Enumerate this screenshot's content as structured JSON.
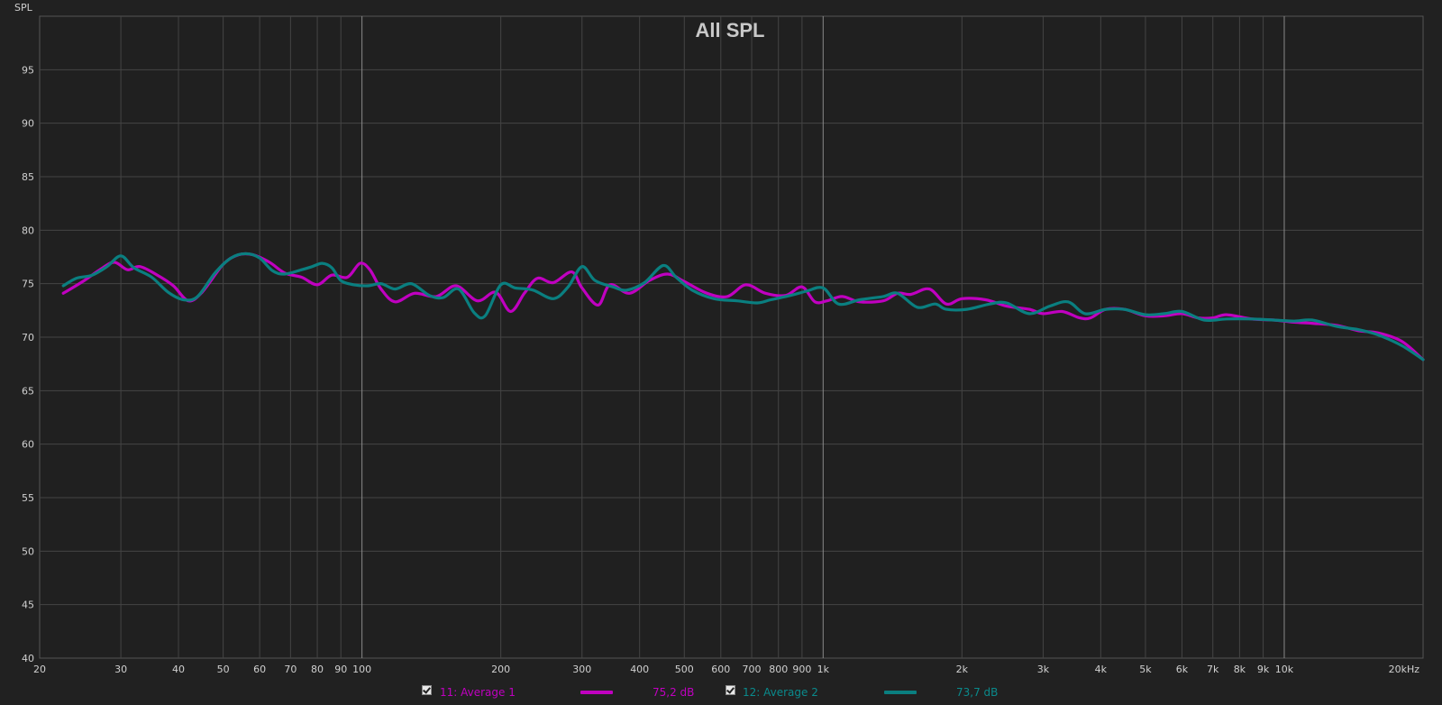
{
  "chart_data": {
    "type": "line",
    "title": "All SPL",
    "ylabel": "SPL",
    "xlabel": "",
    "x_scale": "log",
    "xlim": [
      20,
      20000
    ],
    "ylim": [
      40,
      100
    ],
    "y_ticks": [
      40,
      45,
      50,
      55,
      60,
      65,
      70,
      75,
      80,
      85,
      90,
      95
    ],
    "x_ticks": [
      {
        "v": 20,
        "label": "20"
      },
      {
        "v": 30,
        "label": "30"
      },
      {
        "v": 40,
        "label": "40"
      },
      {
        "v": 50,
        "label": "50"
      },
      {
        "v": 60,
        "label": "60"
      },
      {
        "v": 70,
        "label": "70"
      },
      {
        "v": 80,
        "label": "80"
      },
      {
        "v": 90,
        "label": "90"
      },
      {
        "v": 100,
        "label": "100"
      },
      {
        "v": 200,
        "label": "200"
      },
      {
        "v": 300,
        "label": "300"
      },
      {
        "v": 400,
        "label": "400"
      },
      {
        "v": 500,
        "label": "500"
      },
      {
        "v": 600,
        "label": "600"
      },
      {
        "v": 700,
        "label": "700"
      },
      {
        "v": 800,
        "label": "800"
      },
      {
        "v": 900,
        "label": "900"
      },
      {
        "v": 1000,
        "label": "1k"
      },
      {
        "v": 2000,
        "label": "2k"
      },
      {
        "v": 3000,
        "label": "3k"
      },
      {
        "v": 4000,
        "label": "4k"
      },
      {
        "v": 5000,
        "label": "5k"
      },
      {
        "v": 6000,
        "label": "6k"
      },
      {
        "v": 7000,
        "label": "7k"
      },
      {
        "v": 8000,
        "label": "8k"
      },
      {
        "v": 9000,
        "label": "9k"
      },
      {
        "v": 10000,
        "label": "10k"
      },
      {
        "v": 20000,
        "label": "20kHz"
      }
    ],
    "major_x_lines": [
      100,
      1000,
      10000
    ],
    "grid": true,
    "legend_position": "bottom",
    "series": [
      {
        "name": "11: Average 1",
        "level": "75,2 dB",
        "color": "#c000c0",
        "points": [
          [
            22.5,
            74.1
          ],
          [
            25,
            75.3
          ],
          [
            27,
            76.3
          ],
          [
            29,
            77.0
          ],
          [
            31,
            76.3
          ],
          [
            33,
            76.6
          ],
          [
            36,
            75.8
          ],
          [
            39,
            74.8
          ],
          [
            42,
            73.4
          ],
          [
            45,
            74.2
          ],
          [
            50,
            76.8
          ],
          [
            54,
            77.7
          ],
          [
            58,
            77.7
          ],
          [
            63,
            77.0
          ],
          [
            68,
            76.0
          ],
          [
            74,
            75.6
          ],
          [
            80,
            74.9
          ],
          [
            86,
            75.8
          ],
          [
            93,
            75.6
          ],
          [
            99,
            76.9
          ],
          [
            104,
            76.3
          ],
          [
            110,
            74.5
          ],
          [
            118,
            73.3
          ],
          [
            130,
            74.1
          ],
          [
            145,
            73.8
          ],
          [
            160,
            74.8
          ],
          [
            178,
            73.4
          ],
          [
            195,
            74.2
          ],
          [
            210,
            72.4
          ],
          [
            225,
            74.1
          ],
          [
            240,
            75.5
          ],
          [
            260,
            75.1
          ],
          [
            285,
            76.1
          ],
          [
            300,
            74.6
          ],
          [
            325,
            73.0
          ],
          [
            345,
            74.9
          ],
          [
            380,
            74.1
          ],
          [
            420,
            75.3
          ],
          [
            460,
            75.9
          ],
          [
            500,
            75.2
          ],
          [
            560,
            74.1
          ],
          [
            620,
            73.8
          ],
          [
            680,
            74.9
          ],
          [
            750,
            74.1
          ],
          [
            830,
            73.9
          ],
          [
            900,
            74.7
          ],
          [
            960,
            73.3
          ],
          [
            1020,
            73.4
          ],
          [
            1100,
            73.8
          ],
          [
            1200,
            73.3
          ],
          [
            1350,
            73.4
          ],
          [
            1450,
            74.1
          ],
          [
            1550,
            74.0
          ],
          [
            1700,
            74.5
          ],
          [
            1850,
            73.1
          ],
          [
            2000,
            73.6
          ],
          [
            2250,
            73.5
          ],
          [
            2500,
            72.9
          ],
          [
            2800,
            72.6
          ],
          [
            3000,
            72.2
          ],
          [
            3300,
            72.4
          ],
          [
            3600,
            71.8
          ],
          [
            3800,
            71.8
          ],
          [
            4100,
            72.6
          ],
          [
            4500,
            72.6
          ],
          [
            5000,
            72.0
          ],
          [
            5500,
            72.0
          ],
          [
            6000,
            72.2
          ],
          [
            6500,
            71.8
          ],
          [
            7000,
            71.8
          ],
          [
            7500,
            72.1
          ],
          [
            8500,
            71.7
          ],
          [
            9500,
            71.6
          ],
          [
            10500,
            71.4
          ],
          [
            11500,
            71.3
          ],
          [
            13000,
            71.1
          ],
          [
            14500,
            70.6
          ],
          [
            16000,
            70.4
          ],
          [
            18000,
            69.6
          ],
          [
            20000,
            67.9
          ]
        ]
      },
      {
        "name": "12: Average 2",
        "level": "73,7 dB",
        "color": "#0a7f80",
        "points": [
          [
            22.5,
            74.8
          ],
          [
            24,
            75.5
          ],
          [
            26,
            75.8
          ],
          [
            28,
            76.6
          ],
          [
            30,
            77.6
          ],
          [
            32,
            76.5
          ],
          [
            35,
            75.6
          ],
          [
            38,
            74.2
          ],
          [
            41,
            73.5
          ],
          [
            44,
            73.8
          ],
          [
            48,
            76.0
          ],
          [
            52,
            77.4
          ],
          [
            56,
            77.8
          ],
          [
            60,
            77.4
          ],
          [
            64,
            76.2
          ],
          [
            68,
            75.9
          ],
          [
            74,
            76.3
          ],
          [
            78,
            76.6
          ],
          [
            82,
            76.9
          ],
          [
            86,
            76.5
          ],
          [
            90,
            75.3
          ],
          [
            96,
            74.9
          ],
          [
            103,
            74.8
          ],
          [
            110,
            75.0
          ],
          [
            118,
            74.5
          ],
          [
            128,
            75.0
          ],
          [
            140,
            73.9
          ],
          [
            150,
            73.7
          ],
          [
            162,
            74.5
          ],
          [
            175,
            72.3
          ],
          [
            185,
            72.0
          ],
          [
            200,
            74.9
          ],
          [
            215,
            74.6
          ],
          [
            235,
            74.4
          ],
          [
            260,
            73.6
          ],
          [
            280,
            74.7
          ],
          [
            300,
            76.6
          ],
          [
            320,
            75.3
          ],
          [
            350,
            74.7
          ],
          [
            375,
            74.4
          ],
          [
            410,
            75.1
          ],
          [
            450,
            76.7
          ],
          [
            480,
            75.6
          ],
          [
            520,
            74.4
          ],
          [
            580,
            73.6
          ],
          [
            650,
            73.4
          ],
          [
            720,
            73.2
          ],
          [
            770,
            73.5
          ],
          [
            850,
            73.9
          ],
          [
            920,
            74.3
          ],
          [
            1000,
            74.6
          ],
          [
            1080,
            73.1
          ],
          [
            1200,
            73.5
          ],
          [
            1350,
            73.8
          ],
          [
            1450,
            74.1
          ],
          [
            1600,
            72.8
          ],
          [
            1750,
            73.1
          ],
          [
            1850,
            72.6
          ],
          [
            2050,
            72.6
          ],
          [
            2300,
            73.1
          ],
          [
            2500,
            73.2
          ],
          [
            2800,
            72.2
          ],
          [
            3100,
            72.9
          ],
          [
            3400,
            73.3
          ],
          [
            3700,
            72.2
          ],
          [
            4100,
            72.6
          ],
          [
            4500,
            72.6
          ],
          [
            5000,
            72.1
          ],
          [
            5500,
            72.2
          ],
          [
            6000,
            72.4
          ],
          [
            6700,
            71.6
          ],
          [
            7500,
            71.7
          ],
          [
            8500,
            71.7
          ],
          [
            9500,
            71.6
          ],
          [
            10500,
            71.5
          ],
          [
            11500,
            71.6
          ],
          [
            13000,
            71.0
          ],
          [
            14500,
            70.7
          ],
          [
            16000,
            70.2
          ],
          [
            18000,
            69.2
          ],
          [
            20000,
            67.9
          ]
        ]
      }
    ]
  },
  "legend": [
    {
      "label": "11: Average 1",
      "level": "75,2 dB",
      "color": "#c000c0",
      "checked": true
    },
    {
      "label": "12: Average 2",
      "level": "73,7 dB",
      "color": "#0a7f80",
      "checked": true
    }
  ]
}
